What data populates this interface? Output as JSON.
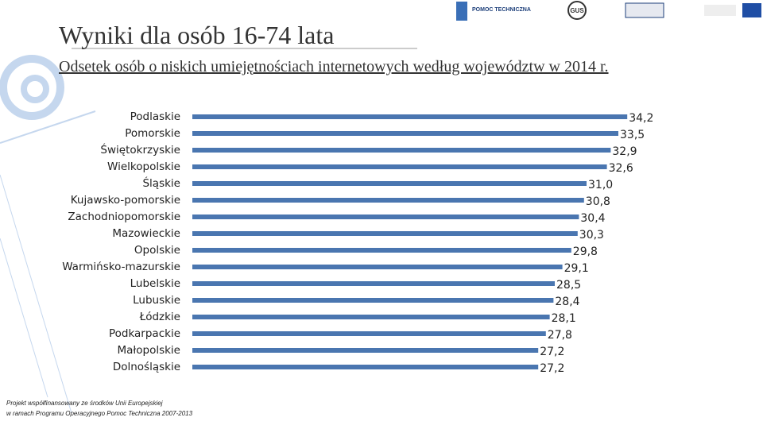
{
  "chart_data": {
    "type": "barh",
    "title": "Wyniki dla osób 16-74 lata",
    "subtitle": "Odsetek osób o niskich umiejętnościach internetowych według województw w 2014 r.",
    "categories": [
      "Podlaskie",
      "Pomorskie",
      "Świętokrzyskie",
      "Wielkopolskie",
      "Śląskie",
      "Kujawsko-pomorskie",
      "Zachodniopomorskie",
      "Mazowieckie",
      "Opolskie",
      "Warmińsko-mazurskie",
      "Lubelskie",
      "Lubuskie",
      "Łódzkie",
      "Podkarpackie",
      "Małopolskie",
      "Dolnośląskie"
    ],
    "values": [
      34.2,
      33.5,
      32.9,
      32.6,
      31.0,
      30.8,
      30.4,
      30.3,
      29.8,
      29.1,
      28.5,
      28.4,
      28.1,
      27.8,
      27.2,
      27.2
    ],
    "value_labels": [
      "34,2",
      "33,5",
      "32,9",
      "32,6",
      "31,0",
      "30,8",
      "30,4",
      "30,3",
      "29,8",
      "29,1",
      "28,5",
      "28,4",
      "28,1",
      "27,8",
      "27,2",
      "27,2"
    ],
    "color": "#4a76b0",
    "xlim": [
      0,
      37.5
    ]
  },
  "header": {
    "logo_text": "POMOC TECHNICZNA",
    "gus": "GUS"
  },
  "footer": [
    "Projekt współfinansowany ze środków Unii Europejskiej",
    "w ramach Programu Operacyjnego Pomoc Techniczna 2007-2013"
  ]
}
